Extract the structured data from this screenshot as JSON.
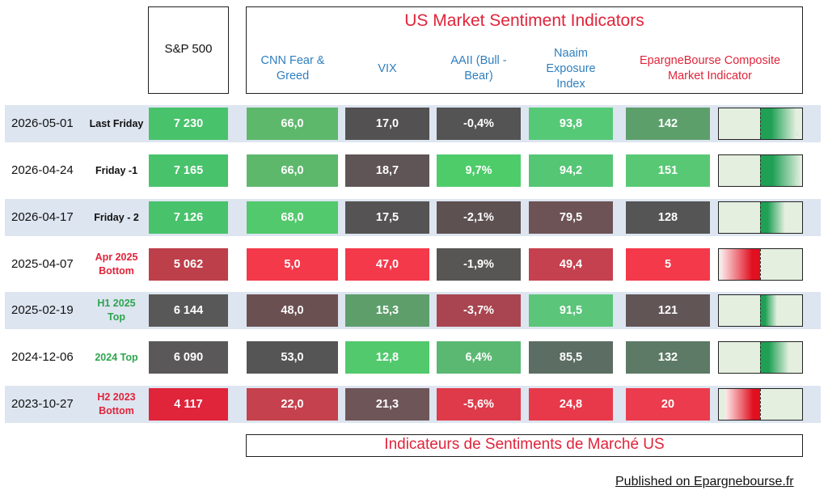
{
  "header": {
    "sp_label": "S&P 500",
    "title": "US Market Sentiment Indicators",
    "columns": [
      {
        "label": "CNN Fear &\nGreed"
      },
      {
        "label": "VIX"
      },
      {
        "label": "AAII (Bull -\nBear)"
      },
      {
        "label": "Naaim\nExposure\nIndex"
      },
      {
        "label": "EpargneBourse Composite\nMarket Indicator"
      }
    ]
  },
  "rows": [
    {
      "date": "2026-05-01",
      "label": "Last Friday",
      "label_color": "#111111",
      "sp": "7 230",
      "cnn": "66,0",
      "vix": "17,0",
      "aaii": "-0,4%",
      "naaim": "93,8",
      "composite": "142",
      "colors": {
        "sp": "#48c26b",
        "cnn": "#5db86c",
        "vix": "#535151",
        "aaii": "#545454",
        "naaim": "#56c977",
        "composite": "#5d9f6b"
      },
      "gauge": {
        "direction": "right",
        "level": 0.89,
        "color": "#1fa055",
        "glyph": "4"
      }
    },
    {
      "date": "2026-04-24",
      "label": "Friday -1",
      "label_color": "#111111",
      "sp": "7 165",
      "cnn": "66,0",
      "vix": "18,7",
      "aaii": "9,7%",
      "naaim": "94,2",
      "composite": "151",
      "colors": {
        "sp": "#48c26b",
        "cnn": "#5db86c",
        "vix": "#5f5456",
        "aaii": "#4ecc6a",
        "naaim": "#54c674",
        "composite": "#58c874"
      },
      "gauge": {
        "direction": "right",
        "level": 1.0,
        "color": "#1fa055",
        "glyph": "5"
      }
    },
    {
      "date": "2026-04-17",
      "label": "Friday - 2",
      "label_color": "#111111",
      "sp": "7 126",
      "cnn": "68,0",
      "vix": "17,5",
      "aaii": "-2,1%",
      "naaim": "79,5",
      "composite": "128",
      "colors": {
        "sp": "#48c26b",
        "cnn": "#52c96d",
        "vix": "#555353",
        "aaii": "#5e5152",
        "naaim": "#6d5356",
        "composite": "#555555"
      },
      "gauge": {
        "direction": "right",
        "level": 0.6,
        "color": "#1fa055",
        "glyph": ""
      }
    },
    {
      "date": "2025-04-07",
      "label": "Apr 2025\nBottom",
      "label_color": "#e0243a",
      "sp": "5 062",
      "cnn": "5,0",
      "vix": "47,0",
      "aaii": "-1,9%",
      "naaim": "49,4",
      "composite": "5",
      "colors": {
        "sp": "#bd3f4a",
        "cnn": "#f4394b",
        "vix": "#f4394b",
        "aaii": "#585555",
        "naaim": "#c5414f",
        "composite": "#f4394b"
      },
      "gauge": {
        "direction": "left",
        "level": 0.97,
        "color": "#e01020",
        "glyph": ""
      }
    },
    {
      "date": "2025-02-19",
      "label": "H1 2025\nTop",
      "label_color": "#2ea44f",
      "sp": "6 144",
      "cnn": "48,0",
      "vix": "15,3",
      "aaii": "-3,7%",
      "naaim": "91,5",
      "composite": "121",
      "colors": {
        "sp": "#585858",
        "cnn": "#6b5052",
        "vix": "#5e9e6b",
        "aaii": "#a84550",
        "naaim": "#5bc57a",
        "composite": "#615556"
      },
      "gauge": {
        "direction": "right",
        "level": 0.42,
        "color": "#1fa055",
        "glyph": ""
      }
    },
    {
      "date": "2024-12-06",
      "label": "2024  Top",
      "label_color": "#2ea44f",
      "sp": "6 090",
      "cnn": "53,0",
      "vix": "12,8",
      "aaii": "6,4%",
      "naaim": "85,5",
      "composite": "132",
      "colors": {
        "sp": "#5a5858",
        "cnn": "#555555",
        "vix": "#52c96d",
        "aaii": "#5bb872",
        "naaim": "#5c6e63",
        "composite": "#5c7a66"
      },
      "gauge": {
        "direction": "right",
        "level": 0.7,
        "color": "#1fa055",
        "glyph": ""
      }
    },
    {
      "date": "2023-10-27",
      "label": "H2 2023\nBottom",
      "label_color": "#e0243a",
      "sp": "4 117",
      "cnn": "22,0",
      "vix": "21,3",
      "aaii": "-5,6%",
      "naaim": "24,8",
      "composite": "20",
      "colors": {
        "sp": "#e0243a",
        "cnn": "#c5414d",
        "vix": "#6e5558",
        "aaii": "#df3a49",
        "naaim": "#e8394b",
        "composite": "#eb3b4d"
      },
      "gauge": {
        "direction": "left",
        "level": 0.85,
        "color": "#e01020",
        "glyph": ""
      }
    }
  ],
  "footer": {
    "title": "Indicateurs de Sentiments de Marché US",
    "published": "Published on Epargnebourse.fr"
  }
}
